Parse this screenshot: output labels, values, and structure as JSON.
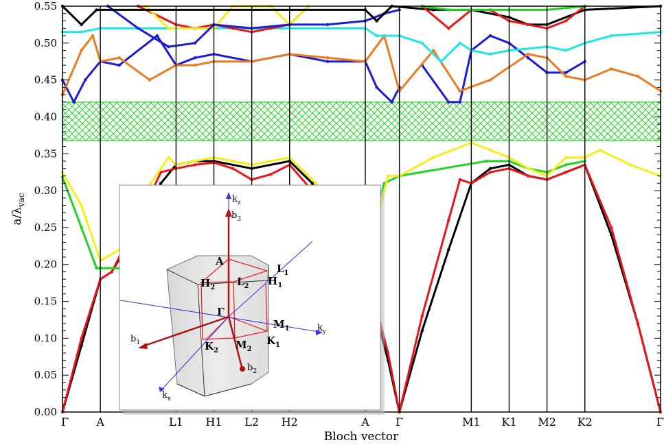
{
  "chart_data": {
    "type": "line",
    "xlabel": "Bloch vector",
    "ylabel": "a/λ_vac",
    "ylabel_main": "a/λ",
    "ylabel_sub": "vac",
    "ylim": [
      0,
      0.55
    ],
    "y_ticks": [
      "0.00",
      "0.05",
      "0.10",
      "0.15",
      "0.20",
      "0.25",
      "0.30",
      "0.35",
      "0.40",
      "0.45",
      "0.50",
      "0.55"
    ],
    "k_labels": [
      "Γ",
      "A",
      "L1",
      "H1",
      "L2",
      "H2",
      "A",
      "Γ",
      "M1",
      "K1",
      "M2",
      "K2",
      "Γ"
    ],
    "k_ticks": [
      0,
      1,
      3,
      4,
      5,
      6,
      8,
      8.9,
      10.8,
      11.8,
      12.8,
      13.8,
      15.8
    ],
    "band_gap": {
      "lower": 0.368,
      "upper": 0.42
    },
    "series": [
      {
        "color": "#000000",
        "points": [
          [
            0,
            0
          ],
          [
            0.5,
            0.09
          ],
          [
            1,
            0.18
          ],
          [
            1.3,
            0.19
          ],
          [
            2,
            0.25
          ],
          [
            2.6,
            0.31
          ],
          [
            3,
            0.335
          ],
          [
            3.5,
            0.34
          ],
          [
            4,
            0.34
          ],
          [
            5,
            0.33
          ],
          [
            6,
            0.34
          ],
          [
            6.6,
            0.31
          ],
          [
            7.2,
            0.25
          ],
          [
            7.8,
            0.2
          ],
          [
            8,
            0.18
          ],
          [
            8.2,
            0.15
          ],
          [
            8.6,
            0.07
          ],
          [
            8.9,
            0
          ],
          [
            9.5,
            0.11
          ],
          [
            10.2,
            0.22
          ],
          [
            10.8,
            0.31
          ],
          [
            11.3,
            0.33
          ],
          [
            11.8,
            0.335
          ],
          [
            12.3,
            0.32
          ],
          [
            12.8,
            0.315
          ],
          [
            13.3,
            0.325
          ],
          [
            13.8,
            0.335
          ],
          [
            14.5,
            0.24
          ],
          [
            15.2,
            0.12
          ],
          [
            15.8,
            0
          ]
        ]
      },
      {
        "color": "#e8161b",
        "points": [
          [
            0,
            0
          ],
          [
            0.5,
            0.1
          ],
          [
            1,
            0.18
          ],
          [
            1.3,
            0.19
          ],
          [
            2,
            0.26
          ],
          [
            2.6,
            0.325
          ],
          [
            3,
            0.33
          ],
          [
            3.5,
            0.335
          ],
          [
            4,
            0.338
          ],
          [
            4.5,
            0.33
          ],
          [
            5,
            0.315
          ],
          [
            5.5,
            0.322
          ],
          [
            6,
            0.335
          ],
          [
            6.6,
            0.3
          ],
          [
            7.2,
            0.25
          ],
          [
            7.8,
            0.2
          ],
          [
            8,
            0.185
          ],
          [
            8.2,
            0.16
          ],
          [
            8.6,
            0.08
          ],
          [
            8.9,
            0
          ],
          [
            9.5,
            0.13
          ],
          [
            10.2,
            0.26
          ],
          [
            10.5,
            0.315
          ],
          [
            10.8,
            0.31
          ],
          [
            11.3,
            0.325
          ],
          [
            11.8,
            0.33
          ],
          [
            12.3,
            0.32
          ],
          [
            12.8,
            0.315
          ],
          [
            13.3,
            0.325
          ],
          [
            13.8,
            0.335
          ],
          [
            14.5,
            0.25
          ],
          [
            15.2,
            0.12
          ],
          [
            15.8,
            0
          ]
        ]
      },
      {
        "color": "#21d321",
        "points": [
          [
            0,
            0.318
          ],
          [
            0.5,
            0.25
          ],
          [
            0.9,
            0.195
          ],
          [
            1,
            0.195
          ],
          [
            7.9,
            0.195
          ],
          [
            8.2,
            0.26
          ],
          [
            8.5,
            0.31
          ],
          [
            8.9,
            0.32
          ],
          [
            11.2,
            0.34
          ],
          [
            11.8,
            0.34
          ],
          [
            12.3,
            0.33
          ],
          [
            12.8,
            0.325
          ],
          [
            13.3,
            0.335
          ],
          [
            13.8,
            0.34
          ]
        ]
      },
      {
        "color": "#f4ee1a",
        "points": [
          [
            0,
            0.325
          ],
          [
            0.5,
            0.28
          ],
          [
            1,
            0.205
          ],
          [
            1.5,
            0.22
          ],
          [
            2.2,
            0.3
          ],
          [
            2.8,
            0.345
          ],
          [
            3,
            0.335
          ],
          [
            3.5,
            0.34
          ],
          [
            4,
            0.345
          ],
          [
            4.5,
            0.34
          ],
          [
            5,
            0.335
          ],
          [
            5.5,
            0.34
          ],
          [
            6,
            0.345
          ],
          [
            6.7,
            0.31
          ],
          [
            7.3,
            0.25
          ],
          [
            8,
            0.205
          ],
          [
            8.3,
            0.26
          ],
          [
            8.6,
            0.32
          ],
          [
            8.9,
            0.32
          ],
          [
            9.8,
            0.345
          ],
          [
            10.8,
            0.365
          ],
          [
            11.3,
            0.355
          ],
          [
            11.8,
            0.345
          ],
          [
            12.3,
            0.33
          ],
          [
            12.8,
            0.32
          ],
          [
            13.3,
            0.345
          ],
          [
            13.8,
            0.345
          ],
          [
            14.2,
            0.355
          ],
          [
            15,
            0.335
          ],
          [
            15.8,
            0.32
          ]
        ]
      },
      {
        "color": "#1b1bd1",
        "points": [
          [
            0,
            0.45
          ],
          [
            0.3,
            0.42
          ],
          [
            0.6,
            0.45
          ],
          [
            1,
            0.475
          ],
          [
            1.5,
            0.47
          ],
          [
            2.5,
            0.51
          ],
          [
            3,
            0.47
          ],
          [
            3.5,
            0.48
          ],
          [
            4,
            0.485
          ],
          [
            5,
            0.475
          ],
          [
            6,
            0.485
          ],
          [
            7,
            0.475
          ],
          [
            8,
            0.475
          ],
          [
            8.3,
            0.44
          ],
          [
            8.7,
            0.42
          ],
          [
            8.9,
            0.44
          ]
        ]
      },
      {
        "color": "#1b1bd1",
        "points": [
          [
            9.5,
            0.47
          ],
          [
            10.2,
            0.42
          ],
          [
            10.5,
            0.42
          ],
          [
            10.8,
            0.49
          ],
          [
            11.3,
            0.51
          ],
          [
            11.8,
            0.5
          ],
          [
            12.3,
            0.48
          ],
          [
            12.8,
            0.46
          ],
          [
            13.3,
            0.46
          ],
          [
            13.8,
            0.475
          ]
        ]
      },
      {
        "color": "#ee7a1f",
        "points": [
          [
            0,
            0.43
          ],
          [
            0.5,
            0.49
          ],
          [
            0.8,
            0.51
          ],
          [
            1,
            0.475
          ],
          [
            1.5,
            0.48
          ],
          [
            2.3,
            0.45
          ],
          [
            3,
            0.47
          ],
          [
            3.5,
            0.47
          ],
          [
            4,
            0.475
          ],
          [
            5,
            0.475
          ],
          [
            6,
            0.485
          ],
          [
            7,
            0.48
          ],
          [
            8,
            0.475
          ],
          [
            8.5,
            0.51
          ],
          [
            8.9,
            0.435
          ],
          [
            9.8,
            0.49
          ],
          [
            10.5,
            0.435
          ],
          [
            11.3,
            0.45
          ],
          [
            12.3,
            0.485
          ],
          [
            12.8,
            0.48
          ],
          [
            13.3,
            0.455
          ],
          [
            13.8,
            0.45
          ],
          [
            14.5,
            0.465
          ],
          [
            15.2,
            0.455
          ],
          [
            15.8,
            0.435
          ]
        ]
      },
      {
        "color": "#1ce6e6",
        "points": [
          [
            0,
            0.515
          ],
          [
            0.5,
            0.515
          ],
          [
            1,
            0.52
          ],
          [
            8,
            0.52
          ],
          [
            8.3,
            0.51
          ],
          [
            8.9,
            0.51
          ],
          [
            9.5,
            0.5
          ],
          [
            10,
            0.475
          ],
          [
            10.5,
            0.5
          ],
          [
            10.8,
            0.49
          ],
          [
            11.3,
            0.485
          ],
          [
            11.8,
            0.49
          ],
          [
            12.8,
            0.495
          ],
          [
            13.3,
            0.49
          ],
          [
            13.8,
            0.5
          ],
          [
            14.5,
            0.51
          ],
          [
            15.8,
            0.515
          ]
        ]
      },
      {
        "color": "#e8161b",
        "points": [
          [
            2,
            0.55
          ],
          [
            3,
            0.525
          ],
          [
            3.5,
            0.52
          ],
          [
            4,
            0.525
          ],
          [
            4.5,
            0.52
          ],
          [
            5,
            0.515
          ],
          [
            5.5,
            0.52
          ],
          [
            6,
            0.525
          ],
          [
            6.5,
            0.55
          ]
        ]
      },
      {
        "color": "#f4ee1a",
        "points": [
          [
            2.2,
            0.55
          ],
          [
            2.8,
            0.52
          ],
          [
            4,
            0.52
          ],
          [
            4.5,
            0.55
          ],
          [
            5.5,
            0.55
          ],
          [
            6,
            0.525
          ],
          [
            6.5,
            0.55
          ]
        ]
      },
      {
        "color": "#1b1bd1",
        "points": [
          [
            1.2,
            0.55
          ],
          [
            2,
            0.52
          ],
          [
            2.8,
            0.495
          ],
          [
            3.5,
            0.5
          ],
          [
            4,
            0.525
          ],
          [
            5,
            0.52
          ],
          [
            6,
            0.525
          ],
          [
            7,
            0.525
          ],
          [
            8,
            0.53
          ],
          [
            8.5,
            0.54
          ],
          [
            8.9,
            0.545
          ]
        ]
      },
      {
        "color": "#000000",
        "points": [
          [
            0,
            0.55
          ],
          [
            0.5,
            0.525
          ],
          [
            0.9,
            0.545
          ],
          [
            8,
            0.545
          ],
          [
            8.3,
            0.53
          ],
          [
            8.7,
            0.55
          ],
          [
            9.8,
            0.545
          ],
          [
            10.8,
            0.545
          ],
          [
            11.8,
            0.535
          ],
          [
            12.3,
            0.525
          ],
          [
            12.8,
            0.525
          ],
          [
            13.8,
            0.545
          ],
          [
            15.8,
            0.55
          ]
        ]
      },
      {
        "color": "#e8161b",
        "points": [
          [
            9.5,
            0.55
          ],
          [
            10.2,
            0.52
          ],
          [
            10.8,
            0.545
          ],
          [
            11.3,
            0.545
          ],
          [
            11.8,
            0.53
          ],
          [
            12.8,
            0.52
          ],
          [
            13.3,
            0.53
          ],
          [
            13.8,
            0.55
          ]
        ]
      },
      {
        "color": "#21d321",
        "points": [
          [
            9.5,
            0.55
          ],
          [
            10.2,
            0.545
          ],
          [
            11.8,
            0.545
          ],
          [
            12.8,
            0.545
          ],
          [
            13.8,
            0.55
          ]
        ]
      }
    ],
    "inset": {
      "axis_labels": {
        "kz": "k",
        "kz_sub": "z",
        "ky": "k",
        "ky_sub": "y",
        "kx": "k",
        "kx_sub": "x"
      },
      "vectors": [
        {
          "label": "b",
          "sub": "1"
        },
        {
          "label": "b",
          "sub": "2"
        },
        {
          "label": "b",
          "sub": "3"
        }
      ],
      "points": [
        {
          "label": "Γ",
          "sub": ""
        },
        {
          "label": "A",
          "sub": ""
        },
        {
          "label": "H",
          "sub": "2"
        },
        {
          "label": "L",
          "sub": "2"
        },
        {
          "label": "H",
          "sub": "1"
        },
        {
          "label": "L",
          "sub": "1"
        },
        {
          "label": "M",
          "sub": "1"
        },
        {
          "label": "K",
          "sub": "1"
        },
        {
          "label": "M",
          "sub": "2"
        },
        {
          "label": "K",
          "sub": "2"
        }
      ]
    }
  }
}
